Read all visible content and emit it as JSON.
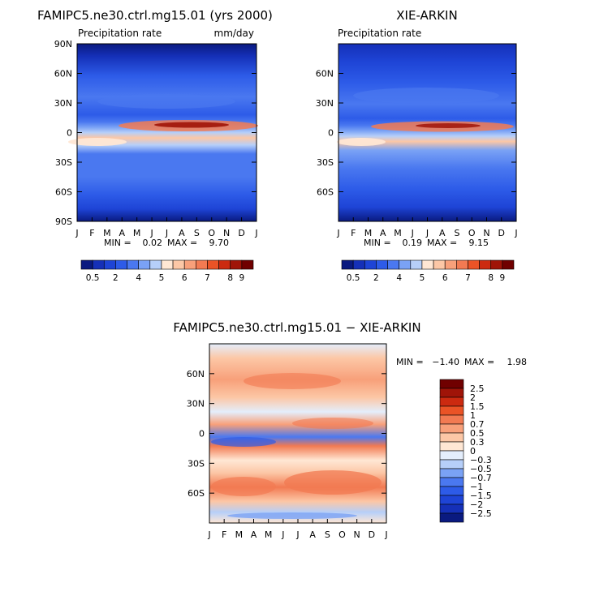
{
  "colors": {
    "absolute_scale": [
      "#0a1a80",
      "#1530b8",
      "#1e44d6",
      "#2d5be8",
      "#4a78f0",
      "#7aa2f5",
      "#b6cff9",
      "#ffe7d4",
      "#fcc7a6",
      "#f8a07a",
      "#f27a52",
      "#ea5326",
      "#cc2a10",
      "#a01408",
      "#700000"
    ],
    "diff_scale": [
      "#0a1a80",
      "#1530b8",
      "#1e44d6",
      "#2d5be8",
      "#4a78f0",
      "#7aa2f5",
      "#b6cff9",
      "#e4eefc",
      "#ffe7d4",
      "#fcc7a6",
      "#f8a07a",
      "#f27a52",
      "#ea5326",
      "#cc2a10",
      "#a01408",
      "#700000"
    ]
  },
  "chart_data": [
    {
      "type": "heatmap",
      "title": "FAMIPC5.ne30.ctrl.mg15.01 (yrs 2000)",
      "subtitle_left": "Precipitation rate",
      "subtitle_right": "mm/day",
      "x_ticks": [
        "J",
        "F",
        "M",
        "A",
        "M",
        "J",
        "J",
        "A",
        "S",
        "O",
        "N",
        "D",
        "J"
      ],
      "y_ticks": [
        "90N",
        "60N",
        "30N",
        "0",
        "30S",
        "60S",
        "90S"
      ],
      "ylim": [
        -90,
        90
      ],
      "min_label": "MIN =",
      "min_value": "0.02",
      "max_label": "MAX =",
      "max_value": "9.70",
      "colorbar_labels": [
        "0.5",
        "2",
        "4",
        "5",
        "6",
        "7",
        "8",
        "9"
      ],
      "max_mm_day": 9.7
    },
    {
      "type": "heatmap",
      "title": "XIE-ARKIN",
      "subtitle_left": "Precipitation rate",
      "x_ticks": [
        "J",
        "F",
        "M",
        "A",
        "M",
        "J",
        "J",
        "A",
        "S",
        "O",
        "N",
        "D",
        "J"
      ],
      "y_ticks": [
        "60N",
        "30N",
        "0",
        "30S",
        "60S"
      ],
      "ylim": [
        -90,
        90
      ],
      "min_label": "MIN =",
      "min_value": "0.19",
      "max_label": "MAX =",
      "max_value": "9.15",
      "colorbar_labels": [
        "0.5",
        "2",
        "4",
        "5",
        "6",
        "7",
        "8",
        "9"
      ],
      "max_mm_day": 9.15
    },
    {
      "type": "heatmap",
      "title": "FAMIPC5.ne30.ctrl.mg15.01 − XIE-ARKIN",
      "x_ticks": [
        "J",
        "F",
        "M",
        "A",
        "M",
        "J",
        "J",
        "A",
        "S",
        "O",
        "N",
        "D",
        "J"
      ],
      "y_ticks": [
        "60N",
        "30N",
        "0",
        "30S",
        "60S"
      ],
      "ylim": [
        -90,
        90
      ],
      "min_label": "MIN =",
      "min_value": "−1.40",
      "max_label": "MAX =",
      "max_value": "1.98",
      "legend_labels": [
        "2.5",
        "2",
        "1.5",
        "1",
        "0.7",
        "0.5",
        "0.3",
        "0",
        "−0.3",
        "−0.5",
        "−0.7",
        "−1",
        "−1.5",
        "−2",
        "−2.5"
      ]
    }
  ]
}
